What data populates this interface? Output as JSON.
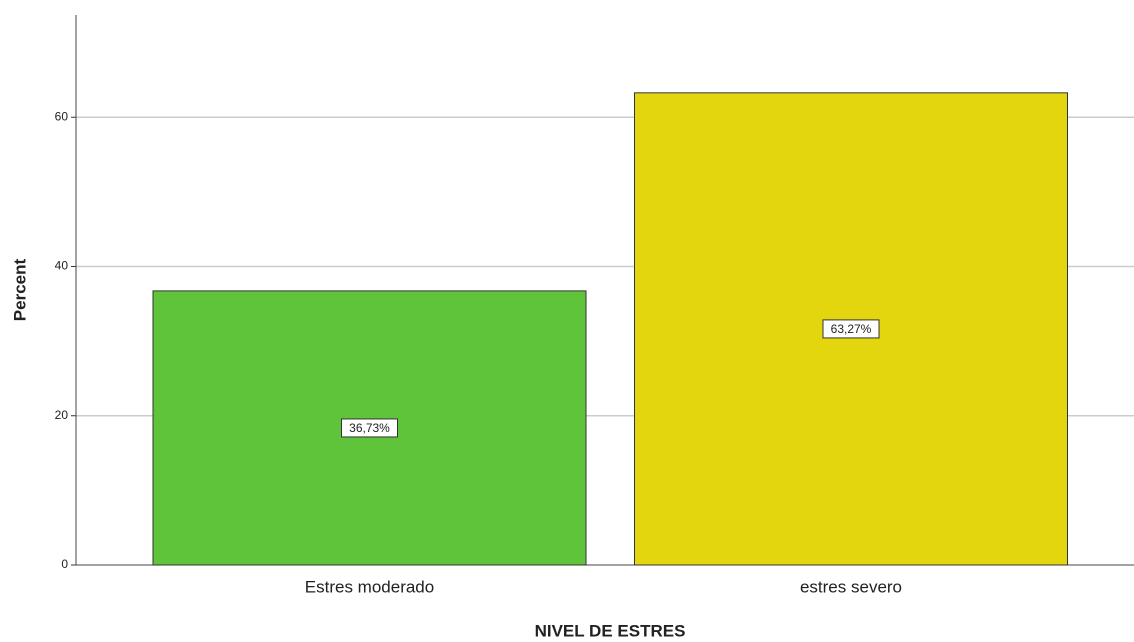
{
  "chart_data": {
    "type": "bar",
    "y_label": "Percent",
    "x_label": "NIVEL DE ESTRES",
    "categories": [
      "Estres moderado",
      "estres severo"
    ],
    "values": [
      36.73,
      63.27
    ],
    "value_labels": [
      "36,73%",
      "63,27%"
    ],
    "colors": [
      "#5fc43a",
      "#e3d60e"
    ],
    "ylim": [
      0,
      73.7
    ],
    "yticks": [
      0,
      20,
      40,
      60
    ],
    "grid": true
  }
}
